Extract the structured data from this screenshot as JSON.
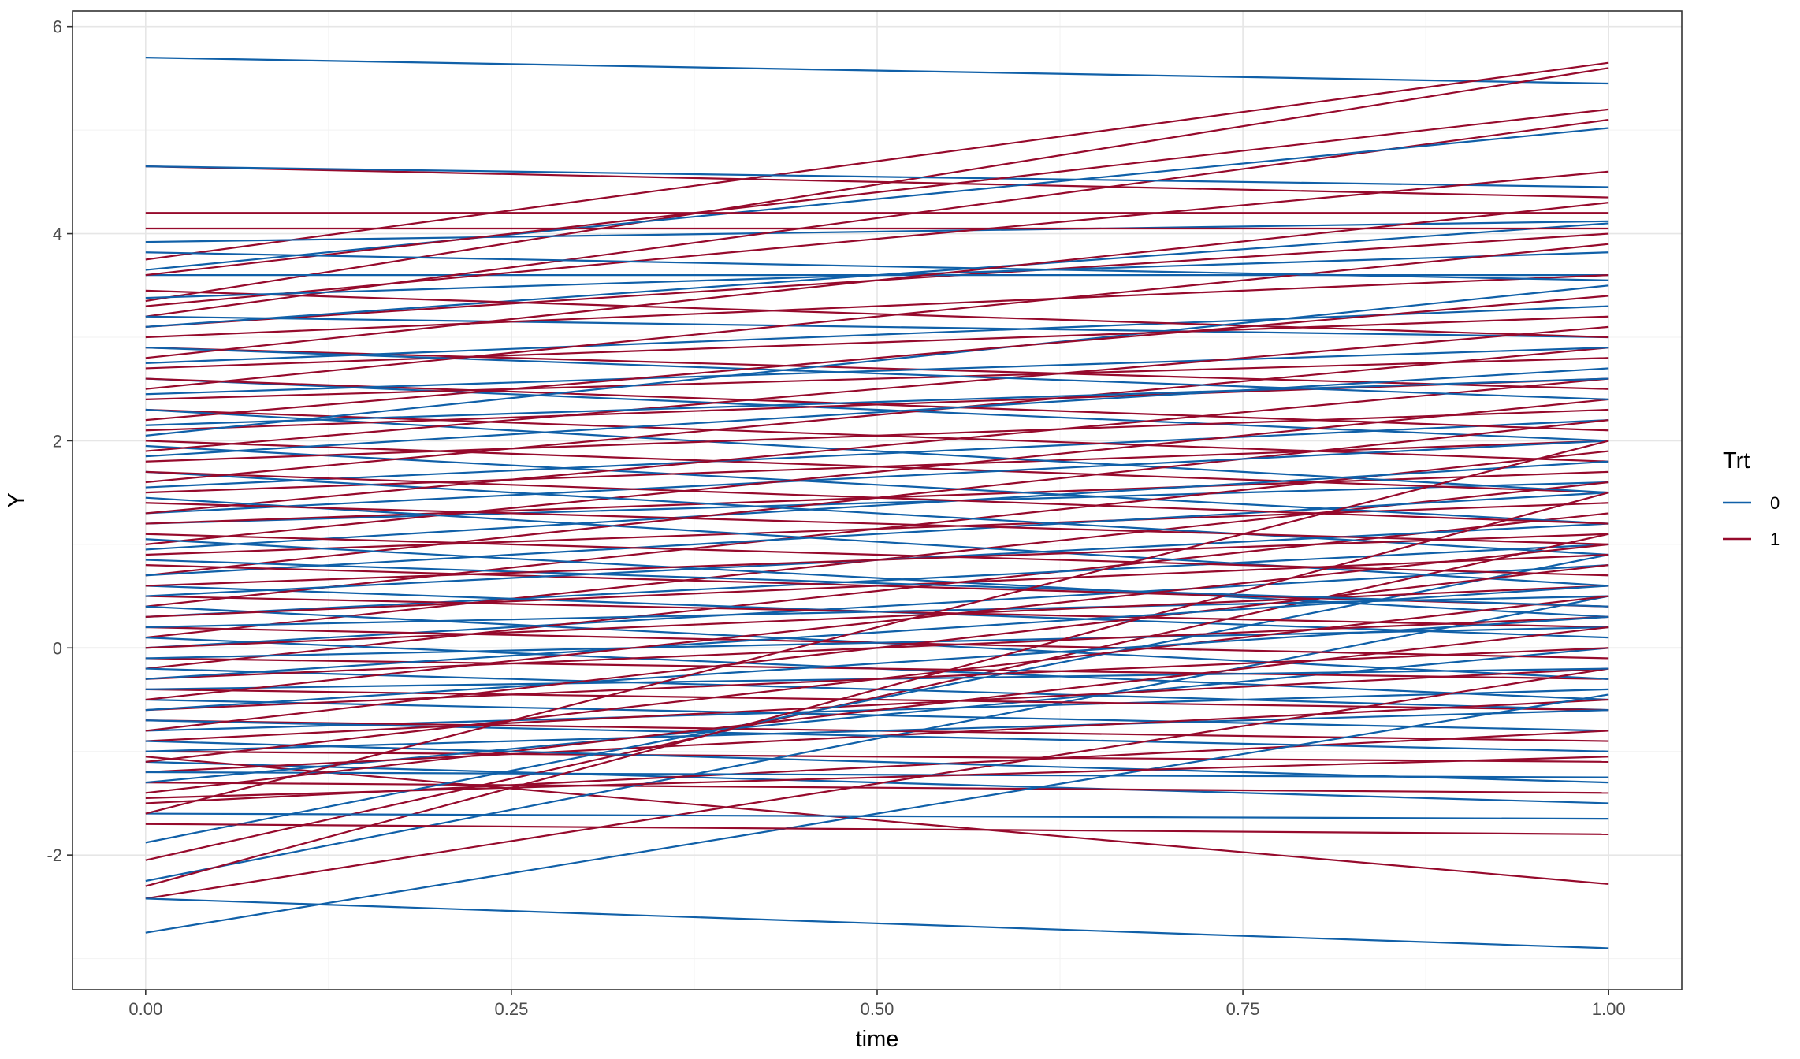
{
  "chart_data": {
    "type": "line",
    "title": "",
    "xlabel": "time",
    "ylabel": "Y",
    "xlim": [
      -0.05,
      1.05
    ],
    "ylim": [
      -3.3,
      6.15
    ],
    "x_ticks": [
      0.0,
      0.25,
      0.5,
      0.75,
      1.0
    ],
    "x_tick_labels": [
      "0.00",
      "0.25",
      "0.50",
      "0.75",
      "1.00"
    ],
    "y_ticks": [
      -2,
      0,
      2,
      4,
      6
    ],
    "y_tick_labels": [
      "-2",
      "0",
      "2",
      "4",
      "6"
    ],
    "grid": true,
    "legend": {
      "title": "Trt",
      "position": "right",
      "entries": [
        {
          "label": "0",
          "color": "#1060a8"
        },
        {
          "label": "1",
          "color": "#960a2c"
        }
      ]
    },
    "x": [
      0,
      1
    ],
    "series": [
      {
        "name": "0",
        "color": "#1060a8",
        "lines": [
          [
            5.7,
            5.45
          ],
          [
            4.65,
            4.45
          ],
          [
            3.92,
            4.12
          ],
          [
            3.82,
            3.55
          ],
          [
            3.65,
            5.02
          ],
          [
            3.6,
            3.6
          ],
          [
            3.38,
            3.82
          ],
          [
            3.2,
            3.0
          ],
          [
            3.1,
            4.1
          ],
          [
            2.9,
            2.4
          ],
          [
            2.75,
            3.3
          ],
          [
            2.6,
            2.0
          ],
          [
            2.45,
            2.9
          ],
          [
            2.3,
            1.5
          ],
          [
            2.15,
            2.6
          ],
          [
            2.05,
            3.5
          ],
          [
            1.95,
            1.2
          ],
          [
            1.85,
            2.7
          ],
          [
            1.7,
            0.9
          ],
          [
            1.55,
            2.2
          ],
          [
            1.45,
            0.6
          ],
          [
            1.3,
            2.0
          ],
          [
            1.2,
            1.6
          ],
          [
            1.05,
            0.3
          ],
          [
            0.95,
            1.8
          ],
          [
            0.85,
            0.4
          ],
          [
            0.7,
            1.5
          ],
          [
            0.6,
            0.1
          ],
          [
            0.5,
            1.2
          ],
          [
            0.4,
            -0.3
          ],
          [
            0.3,
            1.0
          ],
          [
            0.2,
            0.5
          ],
          [
            0.1,
            -0.5
          ],
          [
            0.0,
            0.8
          ],
          [
            -0.1,
            0.2
          ],
          [
            -0.2,
            -0.6
          ],
          [
            -0.3,
            0.6
          ],
          [
            -0.4,
            -0.2
          ],
          [
            -0.5,
            -0.8
          ],
          [
            -0.6,
            0.3
          ],
          [
            -0.7,
            -1.0
          ],
          [
            -0.8,
            -0.4
          ],
          [
            -0.9,
            -1.3
          ],
          [
            -1.0,
            -0.6
          ],
          [
            -1.1,
            -1.5
          ],
          [
            -1.2,
            -1.25
          ],
          [
            -1.3,
            0.0
          ],
          [
            -1.6,
            -1.65
          ],
          [
            -1.88,
            0.9
          ],
          [
            -2.25,
            0.5
          ],
          [
            -2.42,
            -2.9
          ],
          [
            -2.75,
            -0.45
          ]
        ]
      },
      {
        "name": "1",
        "color": "#960a2c",
        "lines": [
          [
            4.65,
            4.35
          ],
          [
            4.2,
            4.2
          ],
          [
            4.05,
            4.05
          ],
          [
            3.75,
            5.65
          ],
          [
            3.6,
            5.2
          ],
          [
            3.45,
            3.0
          ],
          [
            3.35,
            5.6
          ],
          [
            3.3,
            4.6
          ],
          [
            3.2,
            5.1
          ],
          [
            3.1,
            4.0
          ],
          [
            3.0,
            3.6
          ],
          [
            2.9,
            2.5
          ],
          [
            2.8,
            4.3
          ],
          [
            2.7,
            3.2
          ],
          [
            2.6,
            2.1
          ],
          [
            2.5,
            3.9
          ],
          [
            2.4,
            2.8
          ],
          [
            2.3,
            1.8
          ],
          [
            2.2,
            3.4
          ],
          [
            2.1,
            2.6
          ],
          [
            2.0,
            1.5
          ],
          [
            1.9,
            3.1
          ],
          [
            1.8,
            2.3
          ],
          [
            1.7,
            1.2
          ],
          [
            1.6,
            2.9
          ],
          [
            1.5,
            2.0
          ],
          [
            1.4,
            1.0
          ],
          [
            1.3,
            2.6
          ],
          [
            1.2,
            1.7
          ],
          [
            1.1,
            0.7
          ],
          [
            1.0,
            2.4
          ],
          [
            0.9,
            1.4
          ],
          [
            0.8,
            0.4
          ],
          [
            0.7,
            2.2
          ],
          [
            0.6,
            1.1
          ],
          [
            0.5,
            0.2
          ],
          [
            0.4,
            1.9
          ],
          [
            0.3,
            0.9
          ],
          [
            0.2,
            -0.1
          ],
          [
            0.1,
            1.6
          ],
          [
            0.0,
            0.6
          ],
          [
            -0.1,
            -0.3
          ],
          [
            -0.2,
            1.3
          ],
          [
            -0.3,
            0.3
          ],
          [
            -0.4,
            -0.6
          ],
          [
            -0.5,
            1.0
          ],
          [
            -0.6,
            0.0
          ],
          [
            -0.7,
            -0.9
          ],
          [
            -0.8,
            0.8
          ],
          [
            -0.9,
            -0.2
          ],
          [
            -1.0,
            -1.1
          ],
          [
            -1.1,
            0.5
          ],
          [
            -1.2,
            -0.5
          ],
          [
            -1.3,
            -1.4
          ],
          [
            -1.4,
            0.2
          ],
          [
            -1.5,
            -0.8
          ],
          [
            -1.6,
            2.0
          ],
          [
            -1.7,
            -1.8
          ],
          [
            -2.05,
            1.1
          ],
          [
            -2.3,
            1.5
          ],
          [
            -2.42,
            -0.2
          ],
          [
            -1.05,
            -2.28
          ],
          [
            -1.45,
            -1.05
          ]
        ]
      }
    ]
  }
}
